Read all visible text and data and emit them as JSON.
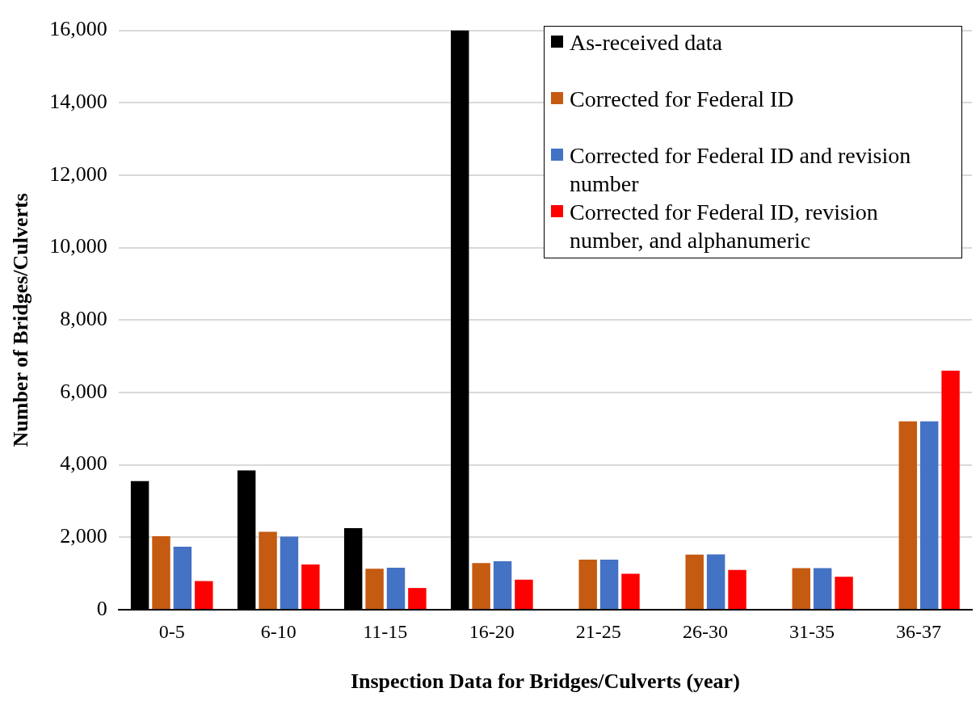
{
  "chart_data": {
    "type": "bar",
    "xlabel": "Inspection Data for Bridges/Culverts (year)",
    "ylabel": "Number of Bridges/Culverts",
    "categories": [
      "0-5",
      "6-10",
      "11-15",
      "16-20",
      "21-25",
      "26-30",
      "31-35",
      "36-37"
    ],
    "series": [
      {
        "name": "As-received data",
        "color": "#000000",
        "values": [
          3550,
          3850,
          2250,
          16000,
          null,
          null,
          null,
          null
        ]
      },
      {
        "name": "Corrected for Federal ID",
        "color": "#c55a11",
        "values": [
          2030,
          2150,
          1130,
          1290,
          1380,
          1520,
          1150,
          5200
        ]
      },
      {
        "name": "Corrected for Federal ID and revision number",
        "color": "#4472c4",
        "values": [
          1740,
          2020,
          1160,
          1340,
          1380,
          1530,
          1150,
          5200
        ]
      },
      {
        "name": "Corrected for Federal ID, revision number, and alphanumeric",
        "color": "#ff0000",
        "values": [
          790,
          1250,
          600,
          830,
          990,
          1100,
          910,
          6600
        ]
      }
    ],
    "ylim": [
      0,
      16000
    ],
    "yticks": [
      0,
      {
        "value": 2000,
        "label": "2,000"
      },
      {
        "value": 4000,
        "label": "4,000"
      },
      {
        "value": 6000,
        "label": "6,000"
      },
      {
        "value": 8000,
        "label": "8,000"
      },
      {
        "value": 10000,
        "label": "10,000"
      },
      {
        "value": 12000,
        "label": "12,000"
      },
      {
        "value": 14000,
        "label": "14,000"
      },
      {
        "value": 16000,
        "label": "16,000"
      }
    ],
    "grid": "y",
    "legend": "top right"
  }
}
